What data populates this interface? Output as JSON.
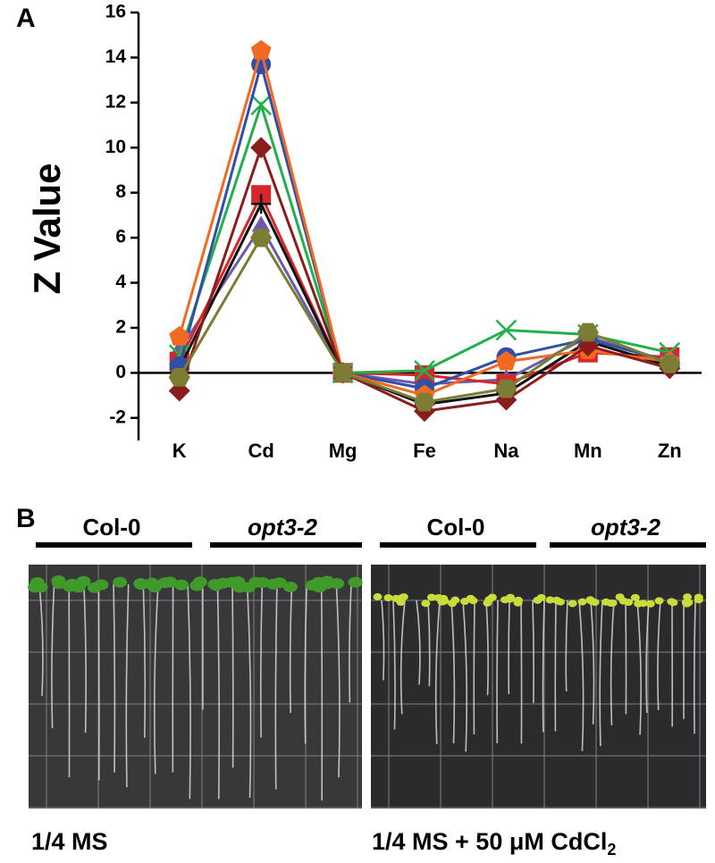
{
  "panel_labels": [
    "A",
    "B"
  ],
  "chart_data": {
    "type": "line",
    "y_label": "Z Value",
    "categories": [
      "K",
      "Cd",
      "Mg",
      "Fe",
      "Na",
      "Mn",
      "Zn"
    ],
    "ylim": [
      -3,
      16
    ],
    "yticks": [
      -2,
      0,
      2,
      4,
      6,
      8,
      10,
      12,
      14,
      16
    ],
    "series": [
      {
        "color": "#6b5bb0",
        "marker": "triangle",
        "values": [
          1.0,
          6.5,
          0,
          -0.5,
          -0.3,
          1.6,
          0.5
        ]
      },
      {
        "color": "#d8262b",
        "marker": "square",
        "values": [
          0.5,
          7.9,
          0,
          -0.1,
          -0.5,
          0.9,
          0.7
        ]
      },
      {
        "color": "#111111",
        "marker": "plus",
        "values": [
          0.2,
          7.5,
          0,
          -1.4,
          -0.9,
          1.4,
          0.3
        ]
      },
      {
        "color": "#22b04a",
        "marker": "x",
        "values": [
          0.8,
          11.9,
          0,
          0.1,
          1.9,
          1.7,
          0.9
        ]
      },
      {
        "color": "#2f4fa8",
        "marker": "circle",
        "values": [
          0.3,
          13.7,
          0,
          -0.7,
          0.7,
          1.5,
          0.5
        ]
      },
      {
        "color": "#f26a21",
        "marker": "pentagon",
        "values": [
          1.6,
          14.3,
          0,
          -1.0,
          0.5,
          1.0,
          0.5
        ]
      },
      {
        "color": "#8a1c1c",
        "marker": "diamond",
        "values": [
          -0.8,
          10.0,
          0,
          -1.7,
          -1.2,
          1.2,
          0.2
        ]
      },
      {
        "color": "#7c7d35",
        "marker": "hexagon",
        "values": [
          -0.2,
          6.0,
          0,
          -1.3,
          -0.7,
          1.8,
          0.4
        ]
      }
    ]
  },
  "panel_b": {
    "groups": [
      {
        "label": "Col-0",
        "italic": false
      },
      {
        "label": "opt3-2",
        "italic": true
      },
      {
        "label": "Col-0",
        "italic": false
      },
      {
        "label": "opt3-2",
        "italic": true
      }
    ],
    "caption_left": "1/4 MS",
    "caption_right": {
      "text": "1/4 MS + 50 μM CdCl",
      "subscript": "2"
    }
  }
}
